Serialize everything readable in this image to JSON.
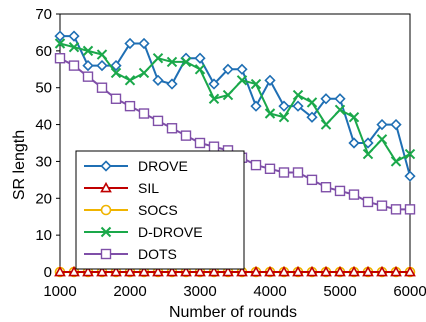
{
  "chart_data": {
    "type": "line",
    "xlabel": "Number of rounds",
    "ylabel": "SR length",
    "xlim": [
      1000,
      6000
    ],
    "ylim": [
      0,
      70
    ],
    "xticks": [
      1000,
      2000,
      3000,
      4000,
      5000,
      6000
    ],
    "yticks": [
      0,
      10,
      20,
      30,
      40,
      50,
      60,
      70
    ],
    "grid": false,
    "legend_position": "bottom-left",
    "x": [
      1000,
      1200,
      1400,
      1600,
      1800,
      2000,
      2200,
      2400,
      2600,
      2800,
      3000,
      3200,
      3400,
      3600,
      3800,
      4000,
      4200,
      4400,
      4600,
      4800,
      5000,
      5200,
      5400,
      5600,
      5800,
      6000
    ],
    "series": [
      {
        "name": "DROVE",
        "color": "#1f6fb4",
        "marker": "diamond",
        "values": [
          64,
          64,
          56,
          56,
          56,
          62,
          62,
          52,
          51,
          58,
          58,
          51,
          55,
          55,
          45,
          52,
          45,
          45,
          42,
          47,
          47,
          35,
          35,
          40,
          40,
          26
        ]
      },
      {
        "name": "SIL",
        "color": "#c00000",
        "marker": "triangle",
        "values": [
          0,
          0,
          0,
          0,
          0,
          0,
          0,
          0,
          0,
          0,
          0,
          0,
          0,
          0,
          0,
          0,
          0,
          0,
          0,
          0,
          0,
          0,
          0,
          0,
          0,
          0
        ]
      },
      {
        "name": "SOCS",
        "color": "#f0b400",
        "marker": "circle",
        "values": [
          0,
          0,
          0,
          0,
          0,
          0,
          0,
          0,
          0,
          0,
          0,
          0,
          0,
          0,
          0,
          0,
          0,
          0,
          0,
          0,
          0,
          0,
          0,
          0,
          0,
          0
        ]
      },
      {
        "name": "D-DROVE",
        "color": "#1aa84a",
        "marker": "x",
        "values": [
          62,
          61,
          60,
          59,
          54,
          52,
          54,
          58,
          57,
          57,
          55,
          47,
          48,
          52,
          51,
          43,
          42,
          48,
          46,
          40,
          44,
          42,
          32,
          36,
          30,
          32
        ]
      },
      {
        "name": "DOTS",
        "color": "#7f4fa8",
        "marker": "square",
        "values": [
          58,
          56,
          53,
          50,
          47,
          45,
          43,
          41,
          39,
          37,
          35,
          34,
          33,
          31,
          29,
          28,
          27,
          27,
          25,
          23,
          22,
          21,
          19,
          18,
          17,
          17
        ]
      }
    ]
  }
}
